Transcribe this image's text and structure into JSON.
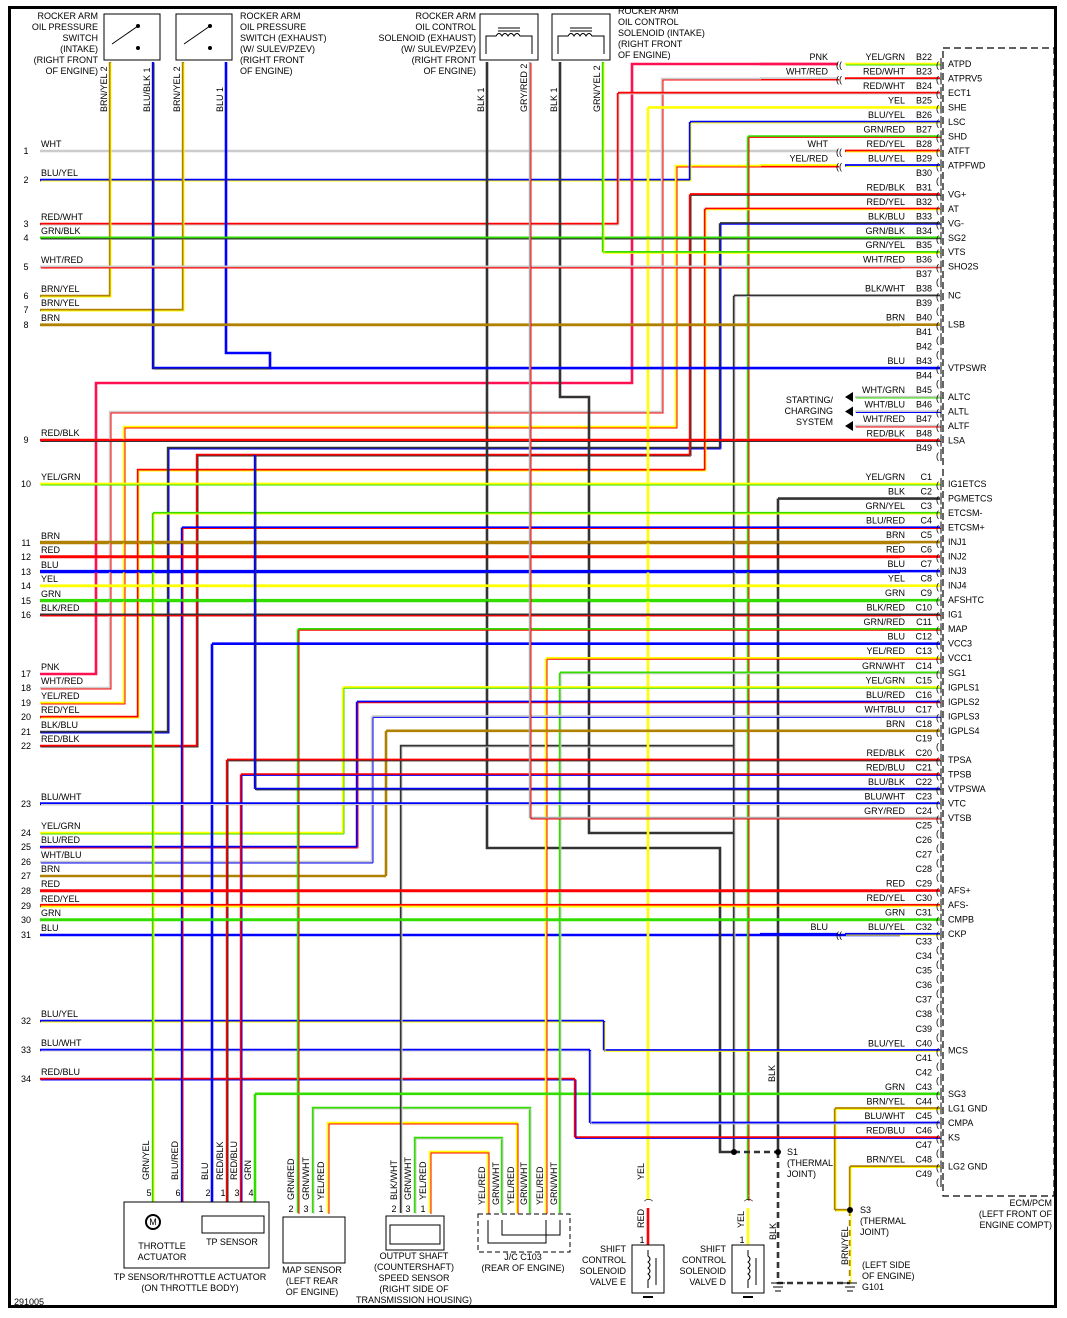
{
  "colors": {
    "RED": "#ff0000",
    "BLK": "#333333",
    "BLU": "#0000ff",
    "YEL": "#ffff00",
    "GRN": "#33dd00",
    "WHT": "#cccccc",
    "BRN": "#b08000",
    "PNK": "#ff1050",
    "GRY": "#aaaaaa"
  },
  "diagram_id": "291005",
  "ecm": {
    "title": "ECM/PCM",
    "location": [
      "(LEFT FRONT OF",
      "ENGINE COMPT)"
    ]
  },
  "b_pins": [
    {
      "pin": "B22",
      "wire": "YEL/GRN",
      "signal": "ATPD",
      "splice": "PNK"
    },
    {
      "pin": "B23",
      "wire": "RED/WHT",
      "signal": "ATPRV5",
      "splice": "WHT/RED"
    },
    {
      "pin": "B24",
      "wire": "RED/WHT",
      "signal": "ECT1"
    },
    {
      "pin": "B25",
      "wire": "YEL",
      "signal": "SHE"
    },
    {
      "pin": "B26",
      "wire": "BLU/YEL",
      "signal": "LSC"
    },
    {
      "pin": "B27",
      "wire": "GRN/RED",
      "signal": "SHD"
    },
    {
      "pin": "B28",
      "wire": "RED/YEL",
      "signal": "ATFT",
      "splice": "WHT"
    },
    {
      "pin": "B29",
      "wire": "BLU/YEL",
      "signal": "ATPFWD",
      "splice": "YEL/RED"
    },
    {
      "pin": "B30",
      "wire": "",
      "signal": ""
    },
    {
      "pin": "B31",
      "wire": "RED/BLK",
      "signal": "VG+"
    },
    {
      "pin": "B32",
      "wire": "RED/YEL",
      "signal": "AT"
    },
    {
      "pin": "B33",
      "wire": "BLK/BLU",
      "signal": "VG-"
    },
    {
      "pin": "B34",
      "wire": "GRN/BLK",
      "signal": "SG2"
    },
    {
      "pin": "B35",
      "wire": "GRN/YEL",
      "signal": "VTS"
    },
    {
      "pin": "B36",
      "wire": "WHT/RED",
      "signal": "SHO2S"
    },
    {
      "pin": "B37",
      "wire": "",
      "signal": ""
    },
    {
      "pin": "B38",
      "wire": "BLK/WHT",
      "signal": "NC"
    },
    {
      "pin": "B39",
      "wire": "",
      "signal": ""
    },
    {
      "pin": "B40",
      "wire": "BRN",
      "signal": "LSB"
    },
    {
      "pin": "B41",
      "wire": "",
      "signal": ""
    },
    {
      "pin": "B42",
      "wire": "",
      "signal": ""
    },
    {
      "pin": "B43",
      "wire": "BLU",
      "signal": "VTPSWR"
    },
    {
      "pin": "B44",
      "wire": "",
      "signal": ""
    },
    {
      "pin": "B45",
      "wire": "WHT/GRN",
      "signal": "ALTC"
    },
    {
      "pin": "B46",
      "wire": "WHT/BLU",
      "signal": "ALTL"
    },
    {
      "pin": "B47",
      "wire": "WHT/RED",
      "signal": "ALTF"
    },
    {
      "pin": "B48",
      "wire": "RED/BLK",
      "signal": "LSA"
    },
    {
      "pin": "B49",
      "wire": "",
      "signal": ""
    }
  ],
  "c_pins": [
    {
      "pin": "C1",
      "wire": "YEL/GRN",
      "signal": "IG1ETCS"
    },
    {
      "pin": "C2",
      "wire": "BLK",
      "signal": "PGMETCS"
    },
    {
      "pin": "C3",
      "wire": "GRN/YEL",
      "signal": "ETCSM-"
    },
    {
      "pin": "C4",
      "wire": "BLU/RED",
      "signal": "ETCSM+"
    },
    {
      "pin": "C5",
      "wire": "BRN",
      "signal": "INJ1"
    },
    {
      "pin": "C6",
      "wire": "RED",
      "signal": "INJ2"
    },
    {
      "pin": "C7",
      "wire": "BLU",
      "signal": "INJ3"
    },
    {
      "pin": "C8",
      "wire": "YEL",
      "signal": "INJ4"
    },
    {
      "pin": "C9",
      "wire": "GRN",
      "signal": "AFSHTC"
    },
    {
      "pin": "C10",
      "wire": "BLK/RED",
      "signal": "IG1"
    },
    {
      "pin": "C11",
      "wire": "GRN/RED",
      "signal": "MAP"
    },
    {
      "pin": "C12",
      "wire": "BLU",
      "signal": "VCC3"
    },
    {
      "pin": "C13",
      "wire": "YEL/RED",
      "signal": "VCC1"
    },
    {
      "pin": "C14",
      "wire": "GRN/WHT",
      "signal": "SG1"
    },
    {
      "pin": "C15",
      "wire": "YEL/GRN",
      "signal": "IGPLS1"
    },
    {
      "pin": "C16",
      "wire": "BLU/RED",
      "signal": "IGPLS2"
    },
    {
      "pin": "C17",
      "wire": "WHT/BLU",
      "signal": "IGPLS3"
    },
    {
      "pin": "C18",
      "wire": "BRN",
      "signal": "IGPLS4"
    },
    {
      "pin": "C19",
      "wire": "",
      "signal": ""
    },
    {
      "pin": "C20",
      "wire": "RED/BLK",
      "signal": "TPSA"
    },
    {
      "pin": "C21",
      "wire": "RED/BLU",
      "signal": "TPSB"
    },
    {
      "pin": "C22",
      "wire": "BLU/BLK",
      "signal": "VTPSWA"
    },
    {
      "pin": "C23",
      "wire": "BLU/WHT",
      "signal": "VTC"
    },
    {
      "pin": "C24",
      "wire": "GRY/RED",
      "signal": "VTSB"
    },
    {
      "pin": "C25",
      "wire": "",
      "signal": ""
    },
    {
      "pin": "C26",
      "wire": "",
      "signal": ""
    },
    {
      "pin": "C27",
      "wire": "",
      "signal": ""
    },
    {
      "pin": "C28",
      "wire": "",
      "signal": ""
    },
    {
      "pin": "C29",
      "wire": "RED",
      "signal": "AFS+"
    },
    {
      "pin": "C30",
      "wire": "RED/YEL",
      "signal": "AFS-"
    },
    {
      "pin": "C31",
      "wire": "GRN",
      "signal": "CMPB"
    },
    {
      "pin": "C32",
      "wire": "BLU/YEL",
      "signal": "CKP",
      "splice": "BLU"
    },
    {
      "pin": "C33",
      "wire": "",
      "signal": ""
    },
    {
      "pin": "C34",
      "wire": "",
      "signal": ""
    },
    {
      "pin": "C35",
      "wire": "",
      "signal": ""
    },
    {
      "pin": "C36",
      "wire": "",
      "signal": ""
    },
    {
      "pin": "C37",
      "wire": "",
      "signal": ""
    },
    {
      "pin": "C38",
      "wire": "",
      "signal": ""
    },
    {
      "pin": "C39",
      "wire": "",
      "signal": ""
    },
    {
      "pin": "C40",
      "wire": "BLU/YEL",
      "signal": "MCS"
    },
    {
      "pin": "C41",
      "wire": "",
      "signal": ""
    },
    {
      "pin": "C42",
      "wire": "",
      "signal": ""
    },
    {
      "pin": "C43",
      "wire": "GRN",
      "signal": "SG3"
    },
    {
      "pin": "C44",
      "wire": "BRN/YEL",
      "signal": "LG1 GND"
    },
    {
      "pin": "C45",
      "wire": "BLU/WHT",
      "signal": "CMPA"
    },
    {
      "pin": "C46",
      "wire": "RED/BLU",
      "signal": "KS"
    },
    {
      "pin": "C47",
      "wire": "",
      "signal": ""
    },
    {
      "pin": "C48",
      "wire": "BRN/YEL",
      "signal": "LG2 GND"
    },
    {
      "pin": "C49",
      "wire": "",
      "signal": ""
    }
  ],
  "left_rows": [
    {
      "num": "1",
      "wire": "WHT"
    },
    {
      "num": "2",
      "wire": "BLU/YEL"
    },
    {
      "num": "3",
      "wire": "RED/WHT"
    },
    {
      "num": "4",
      "wire": "GRN/BLK"
    },
    {
      "num": "5",
      "wire": "WHT/RED"
    },
    {
      "num": "6",
      "wire": "BRN/YEL"
    },
    {
      "num": "7",
      "wire": "BRN/YEL"
    },
    {
      "num": "8",
      "wire": "BRN"
    },
    {
      "num": "9",
      "wire": "RED/BLK"
    },
    {
      "num": "10",
      "wire": "YEL/GRN"
    },
    {
      "num": "11",
      "wire": "BRN"
    },
    {
      "num": "12",
      "wire": "RED"
    },
    {
      "num": "13",
      "wire": "BLU"
    },
    {
      "num": "14",
      "wire": "YEL"
    },
    {
      "num": "15",
      "wire": "GRN"
    },
    {
      "num": "16",
      "wire": "BLK/RED"
    },
    {
      "num": "17",
      "wire": "PNK"
    },
    {
      "num": "18",
      "wire": "WHT/RED"
    },
    {
      "num": "19",
      "wire": "YEL/RED"
    },
    {
      "num": "20",
      "wire": "RED/YEL"
    },
    {
      "num": "21",
      "wire": "BLK/BLU"
    },
    {
      "num": "22",
      "wire": "RED/BLK"
    },
    {
      "num": "23",
      "wire": "BLU/WHT"
    },
    {
      "num": "24",
      "wire": "YEL/GRN"
    },
    {
      "num": "25",
      "wire": "BLU/RED"
    },
    {
      "num": "26",
      "wire": "WHT/BLU"
    },
    {
      "num": "27",
      "wire": "BRN"
    },
    {
      "num": "28",
      "wire": "RED"
    },
    {
      "num": "29",
      "wire": "RED/YEL"
    },
    {
      "num": "30",
      "wire": "GRN"
    },
    {
      "num": "31",
      "wire": "BLU"
    },
    {
      "num": "32",
      "wire": "BLU/YEL"
    },
    {
      "num": "33",
      "wire": "BLU/WHT"
    },
    {
      "num": "34",
      "wire": "RED/BLU"
    }
  ],
  "top_components": {
    "switch_intake": {
      "label": [
        "ROCKER ARM",
        "OIL PRESSURE",
        "SWITCH",
        "(INTAKE)",
        "(RIGHT FRONT",
        "OF ENGINE)"
      ],
      "wires": [
        "BRN/YEL 2",
        "BLU/BLK 1"
      ]
    },
    "switch_exhaust": {
      "label": [
        "ROCKER ARM",
        "OIL PRESSURE",
        "SWITCH (EXHAUST)",
        "(W/ SULEV/PZEV)",
        "(RIGHT FRONT",
        "OF ENGINE)"
      ],
      "wires": [
        "BRN/YEL 2",
        "BLU 1"
      ]
    },
    "solenoid_exhaust": {
      "label": [
        "ROCKER ARM",
        "OIL CONTROL",
        "SOLENOID (EXHAUST)",
        "(W/ SULEV/PZEV)",
        "(RIGHT FRONT",
        "OF ENGINE)"
      ],
      "wires": [
        "BLK 1",
        "GRY/RED 2"
      ]
    },
    "solenoid_intake": {
      "label": [
        "ROCKER ARM",
        "OIL CONTROL",
        "SOLENOID (INTAKE)",
        "(RIGHT FRONT",
        "OF ENGINE)"
      ],
      "wires": [
        "BLK 1",
        "GRN/YEL 2"
      ]
    }
  },
  "starting_charging": [
    "STARTING/",
    "CHARGING",
    "SYSTEM"
  ],
  "bottom_components": {
    "throttle": {
      "label": [
        "TP SENSOR/THROTTLE ACTUATOR",
        "(ON THROTTLE BODY)"
      ],
      "actuator": [
        "THROTTLE",
        "ACTUATOR"
      ],
      "tp": "TP SENSOR",
      "motor": "M",
      "wires": [
        {
          "pin": "5",
          "wire": "GRN/YEL"
        },
        {
          "pin": "6",
          "wire": "BLU/RED"
        },
        {
          "pin": "2",
          "wire": "BLU"
        },
        {
          "pin": "1",
          "wire": "RED/BLK"
        },
        {
          "pin": "3",
          "wire": "RED/BLU"
        },
        {
          "pin": "4",
          "wire": "GRN"
        }
      ]
    },
    "map": {
      "label": [
        "MAP SENSOR",
        "(LEFT REAR",
        "OF ENGINE)"
      ],
      "wires": [
        {
          "pin": "2",
          "wire": "GRN/RED"
        },
        {
          "pin": "3",
          "wire": "GRN/WHT"
        },
        {
          "pin": "1",
          "wire": "YEL/RED"
        }
      ]
    },
    "oss": {
      "label": [
        "OUTPUT SHAFT",
        "(COUNTERSHAFT)",
        "SPEED SENSOR",
        "(RIGHT SIDE OF",
        "TRANSMISSION HOUSING)"
      ],
      "wires": [
        {
          "pin": "2",
          "wire": "BLK/WHT"
        },
        {
          "pin": "3",
          "wire": "GRN/WHT"
        },
        {
          "pin": "1",
          "wire": "YEL/RED"
        }
      ]
    },
    "jc": {
      "label": [
        "J/C C103",
        "(REAR OF ENGINE)"
      ],
      "wires": [
        "YEL/RED",
        "GRN/WHT",
        "YEL/RED",
        "GRN/WHT",
        "YEL/RED",
        "GRN/WHT"
      ]
    },
    "valve_e": {
      "label": [
        "SHIFT",
        "CONTROL",
        "SOLENOID",
        "VALVE E"
      ],
      "upper": "YEL",
      "lower": "RED",
      "pin": "1"
    },
    "valve_d": {
      "label": [
        "SHIFT",
        "CONTROL",
        "SOLENOID",
        "VALVE D"
      ],
      "upper": "",
      "lower": "YEL",
      "pin": "1"
    },
    "s1": [
      "S1",
      "(THERMAL",
      "JOINT)"
    ],
    "s3": [
      "S3",
      "(THERMAL",
      "JOINT)"
    ],
    "ground": {
      "label": [
        "(LEFT SIDE",
        "OF ENGINE)"
      ],
      "id": "G101",
      "wire_blk": "BLK",
      "wire_brnyel": "BRN/YEL",
      "wire_blk_vertical": "BLK"
    }
  }
}
